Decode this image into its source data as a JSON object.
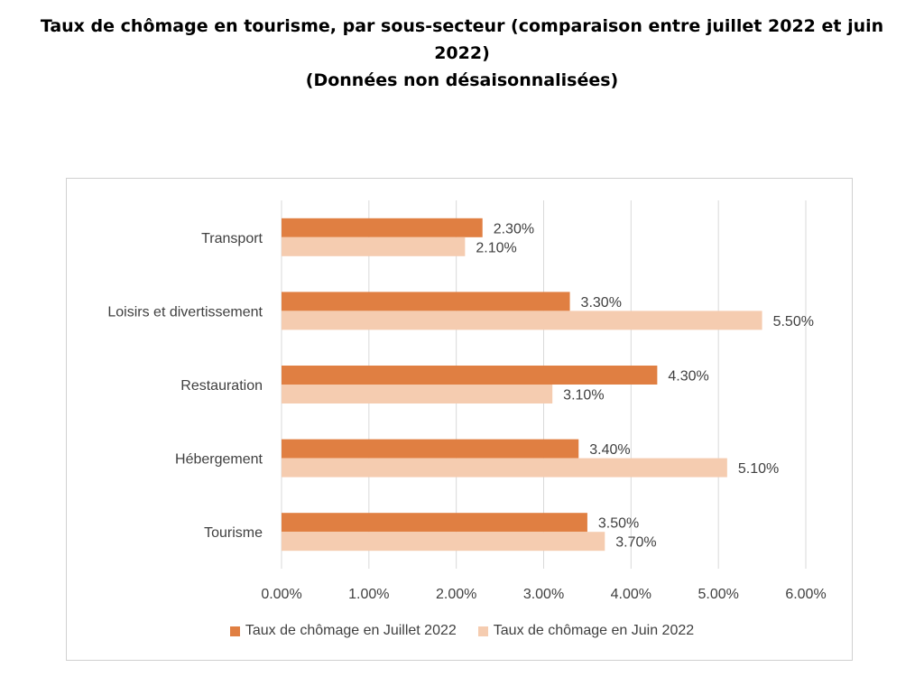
{
  "title": {
    "line1": "Taux de chômage en tourisme, par sous-secteur (comparaison entre juillet  2022 et juin  2022)",
    "line2": "(Données non désaisonnalisées)"
  },
  "colors": {
    "july": "#e07f42",
    "june": "#f5ccb0",
    "grid": "#d9d9d9",
    "text": "#404040"
  },
  "chart_data": {
    "type": "bar",
    "orientation": "horizontal",
    "categories": [
      "Transport",
      "Loisirs et divertissement",
      "Restauration",
      "Hébergement",
      "Tourisme"
    ],
    "series": [
      {
        "name": "Taux de chômage en Juillet 2022",
        "values": [
          2.3,
          3.3,
          4.3,
          3.4,
          3.5
        ],
        "labels": [
          "2.30%",
          "3.30%",
          "4.30%",
          "3.40%",
          "3.50%"
        ]
      },
      {
        "name": "Taux de chômage en Juin 2022",
        "values": [
          2.1,
          5.5,
          3.1,
          5.1,
          3.7
        ],
        "labels": [
          "2.10%",
          "5.50%",
          "3.10%",
          "5.10%",
          "3.70%"
        ]
      }
    ],
    "xlim": [
      0,
      6
    ],
    "xticks": [
      "0.00%",
      "1.00%",
      "2.00%",
      "3.00%",
      "4.00%",
      "5.00%",
      "6.00%"
    ],
    "grid": true,
    "legend": "bottom"
  }
}
